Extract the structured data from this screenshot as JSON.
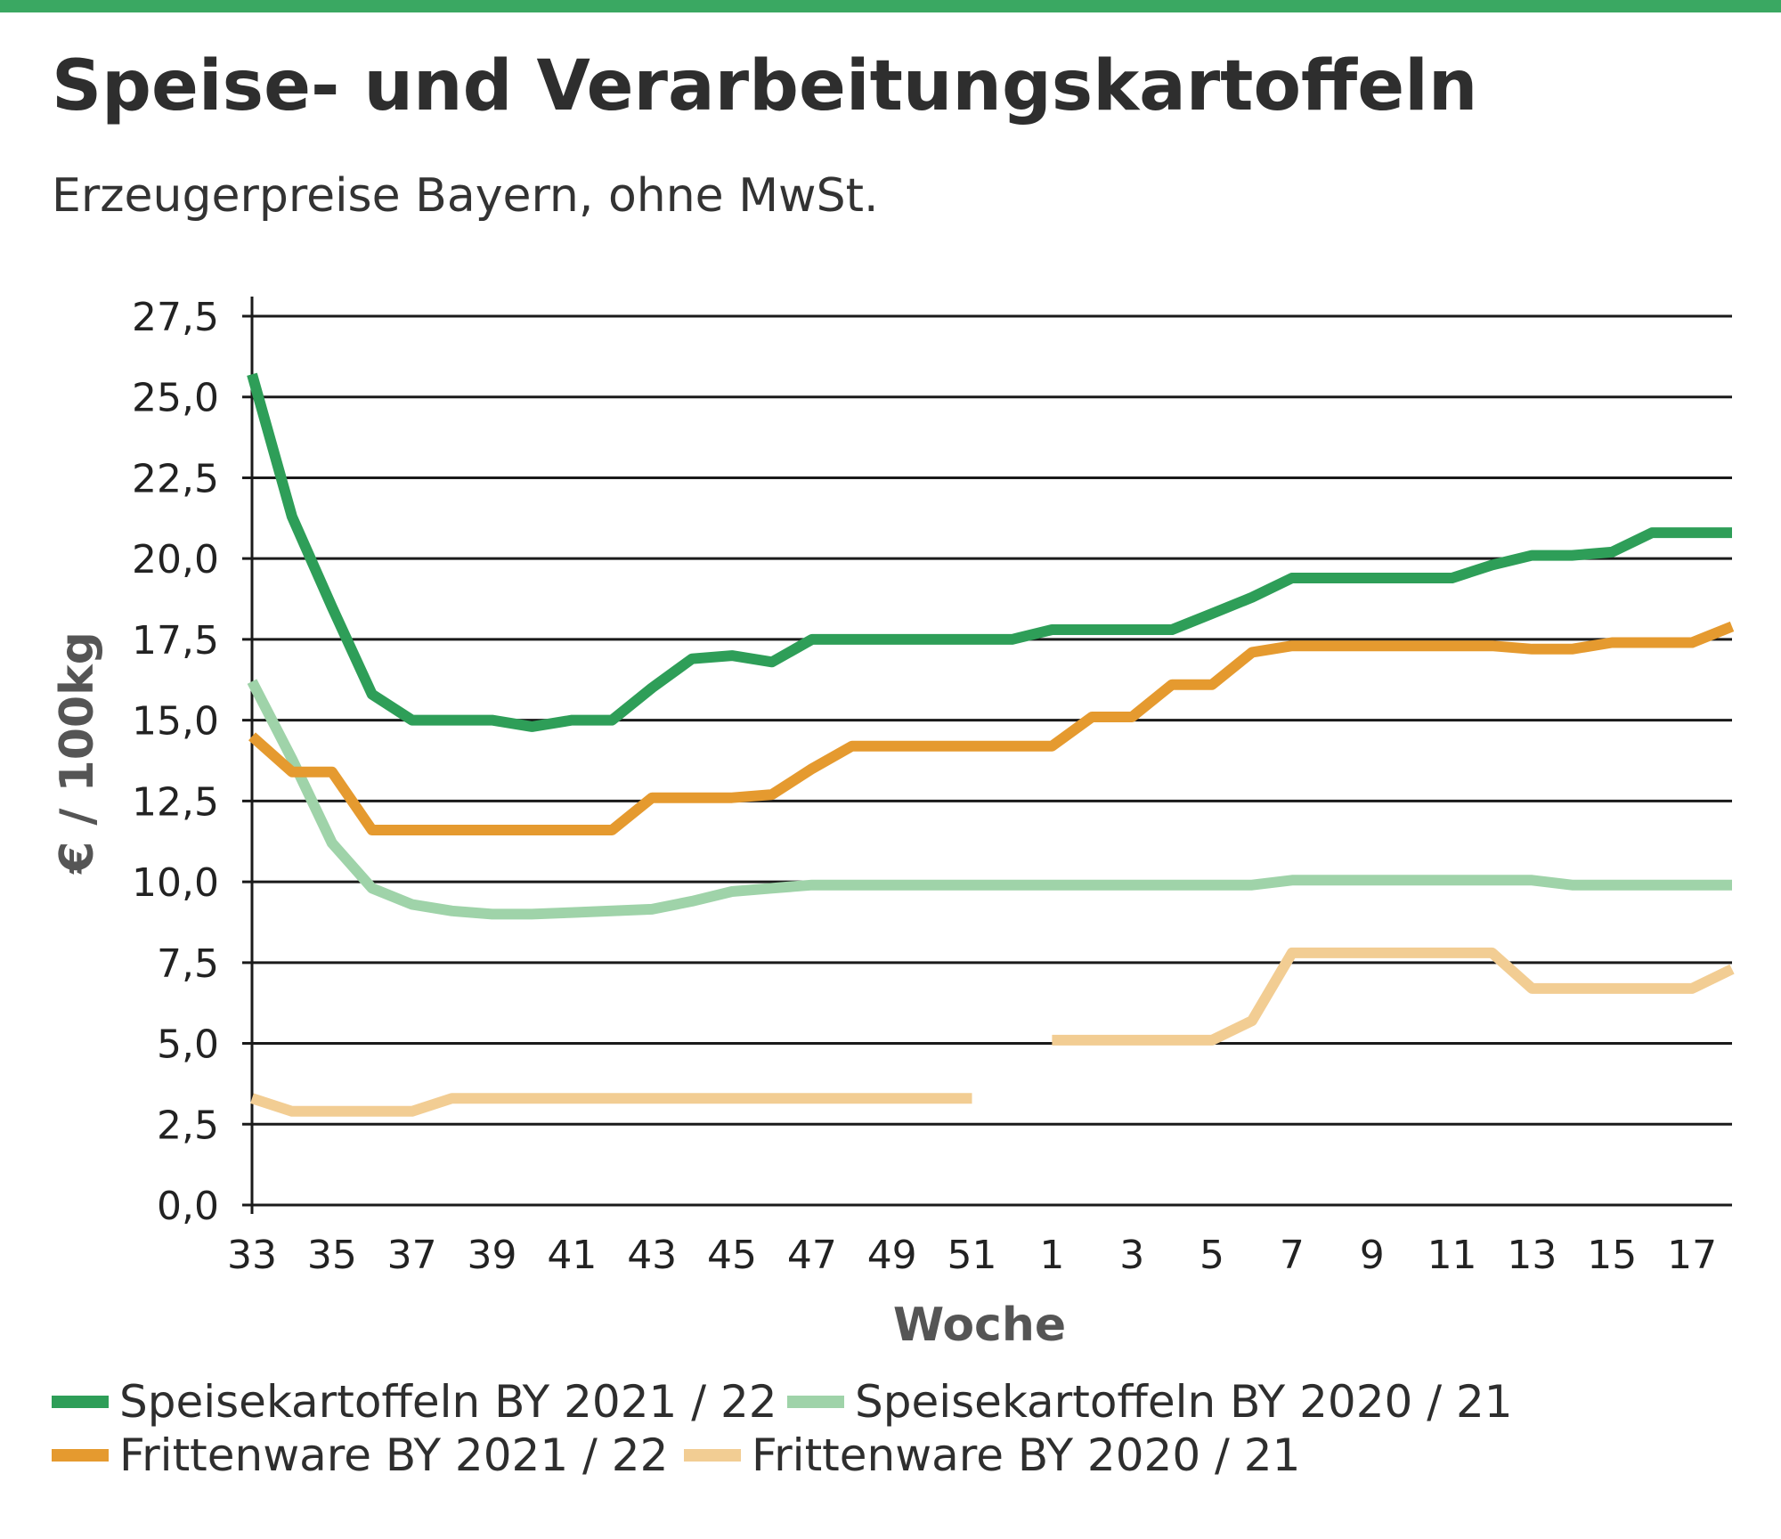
{
  "header": {
    "title": "Speise- und Verarbeitungskartoffeln",
    "subtitle": "Erzeugerpreise Bayern, ohne MwSt."
  },
  "colors": {
    "top_bar": "#3aa862",
    "speise_2021": "#2e9e58",
    "speise_2020": "#9fd3a9",
    "fritten_2021": "#e59a2f",
    "fritten_2020": "#f2cd93",
    "grid": "#1a1a1a",
    "axis_text": "#222222",
    "axis_title": "#555555"
  },
  "chart_data": {
    "type": "line",
    "title": "Speise- und Verarbeitungskartoffeln",
    "subtitle": "Erzeugerpreise Bayern, ohne MwSt.",
    "xlabel": "Woche",
    "ylabel": "€ / 100kg",
    "ylim": [
      0,
      27.5
    ],
    "yticks": [
      "0,0",
      "2,5",
      "5,0",
      "7,5",
      "10,0",
      "12,5",
      "15,0",
      "17,5",
      "20,0",
      "22,5",
      "25,0",
      "27,5"
    ],
    "ytick_values": [
      0,
      2.5,
      5,
      7.5,
      10,
      12.5,
      15,
      17.5,
      20,
      22.5,
      25,
      27.5
    ],
    "x_weeks": [
      33,
      34,
      35,
      36,
      37,
      38,
      39,
      40,
      41,
      42,
      43,
      44,
      45,
      46,
      47,
      48,
      49,
      50,
      51,
      52,
      1,
      2,
      3,
      4,
      5,
      6,
      7,
      8,
      9,
      10,
      11,
      12,
      13,
      14,
      15,
      16,
      17,
      18
    ],
    "xtick_labels": [
      "33",
      "35",
      "37",
      "39",
      "41",
      "43",
      "45",
      "47",
      "49",
      "51",
      "1",
      "3",
      "5",
      "7",
      "9",
      "11",
      "13",
      "15",
      "17"
    ],
    "xtick_indices": [
      0,
      2,
      4,
      6,
      8,
      10,
      12,
      14,
      16,
      18,
      20,
      22,
      24,
      26,
      28,
      30,
      32,
      34,
      36
    ],
    "grid": true,
    "legend_position": "bottom",
    "series": [
      {
        "name": "Speisekartoffeln BY 2021 / 22",
        "color_key": "speise_2021",
        "values": [
          25.7,
          21.3,
          18.5,
          15.8,
          15.0,
          15.0,
          15.0,
          14.8,
          15.0,
          15.0,
          16.0,
          16.9,
          17.0,
          16.8,
          17.5,
          17.5,
          17.5,
          17.5,
          17.5,
          17.5,
          17.8,
          17.8,
          17.8,
          17.8,
          18.3,
          18.8,
          19.4,
          19.4,
          19.4,
          19.4,
          19.4,
          19.8,
          20.1,
          20.1,
          20.2,
          20.8,
          20.8,
          20.8
        ]
      },
      {
        "name": "Speisekartoffeln BY 2020 / 21",
        "color_key": "speise_2020",
        "values": [
          16.2,
          13.8,
          11.2,
          9.8,
          9.3,
          9.1,
          9.0,
          9.0,
          9.05,
          9.1,
          9.15,
          9.4,
          9.7,
          9.8,
          9.9,
          9.9,
          9.9,
          9.9,
          9.9,
          9.9,
          9.9,
          9.9,
          9.9,
          9.9,
          9.9,
          9.9,
          10.05,
          10.05,
          10.05,
          10.05,
          10.05,
          10.05,
          10.05,
          9.9,
          9.9,
          9.9,
          9.9,
          9.9
        ]
      },
      {
        "name": "Frittenware BY 2021 / 22",
        "color_key": "fritten_2021",
        "values": [
          14.5,
          13.4,
          13.4,
          11.6,
          11.6,
          11.6,
          11.6,
          11.6,
          11.6,
          11.6,
          12.6,
          12.6,
          12.6,
          12.7,
          13.5,
          14.2,
          14.2,
          14.2,
          14.2,
          14.2,
          14.2,
          15.1,
          15.1,
          16.1,
          16.1,
          17.1,
          17.3,
          17.3,
          17.3,
          17.3,
          17.3,
          17.3,
          17.2,
          17.2,
          17.4,
          17.4,
          17.4,
          17.9
        ]
      },
      {
        "name": "Frittenware BY 2020 / 21",
        "color_key": "fritten_2020",
        "values": [
          3.3,
          2.9,
          2.9,
          2.9,
          2.9,
          3.3,
          3.3,
          3.3,
          3.3,
          3.3,
          3.3,
          3.3,
          3.3,
          3.3,
          3.3,
          3.3,
          3.3,
          3.3,
          3.3,
          null,
          5.1,
          5.1,
          5.1,
          5.1,
          5.1,
          5.7,
          7.8,
          7.8,
          7.8,
          7.8,
          7.8,
          7.8,
          6.7,
          6.7,
          6.7,
          6.7,
          6.7,
          7.3
        ]
      }
    ]
  },
  "legend": [
    {
      "label": "Speisekartoffeln BY 2021 / 22",
      "color_key": "speise_2021"
    },
    {
      "label": "Speisekartoffeln BY 2020 / 21",
      "color_key": "speise_2020"
    },
    {
      "label": "Frittenware BY 2021 / 22",
      "color_key": "fritten_2021"
    },
    {
      "label": "Frittenware BY 2020 / 21",
      "color_key": "fritten_2020"
    }
  ]
}
